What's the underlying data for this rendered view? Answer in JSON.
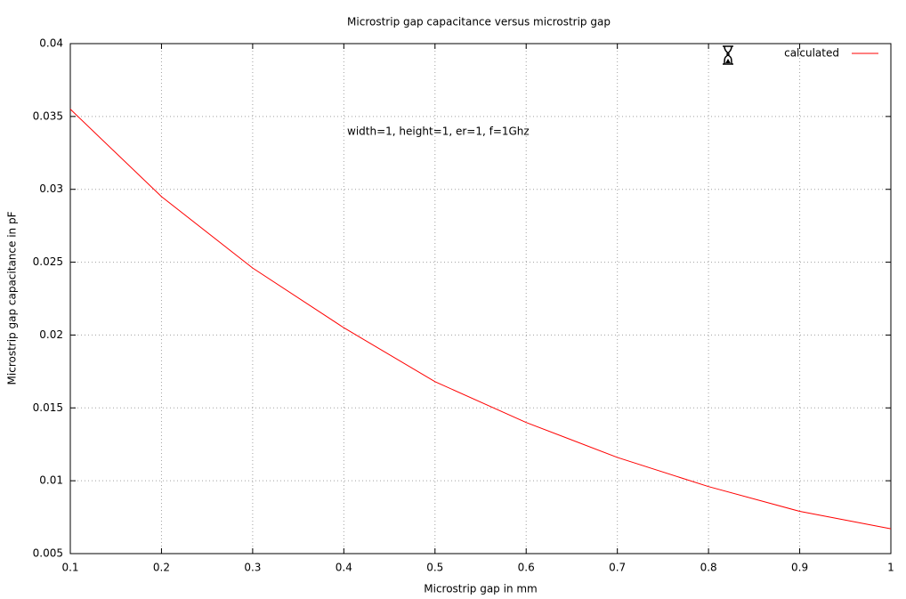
{
  "chart_data": {
    "type": "line",
    "title": "Microstrip gap capacitance versus microstrip gap",
    "x_label": "Microstrip gap in mm",
    "y_label": "Microstrip gap capacitance in pF",
    "annotation": "width=1, height=1, er=1, f=1Ghz",
    "x": [
      0.1,
      0.2,
      0.3,
      0.4,
      0.5,
      0.6,
      0.7,
      0.8,
      0.9,
      1
    ],
    "series": [
      {
        "name": "calculated",
        "color": "#ff0000",
        "values": [
          0.0355,
          0.0295,
          0.0246,
          0.0205,
          0.0168,
          0.014,
          0.0116,
          0.0096,
          0.0079,
          0.0067
        ]
      }
    ],
    "xlim": [
      0.1,
      1
    ],
    "ylim": [
      0.005,
      0.04
    ],
    "xticks": [
      0.1,
      0.2,
      0.3,
      0.4,
      0.5,
      0.6,
      0.7,
      0.8,
      0.9,
      1
    ],
    "yticks": [
      0.005,
      0.01,
      0.015,
      0.02,
      0.025,
      0.03,
      0.035,
      0.04
    ],
    "grid": true,
    "legend": "top-right"
  }
}
